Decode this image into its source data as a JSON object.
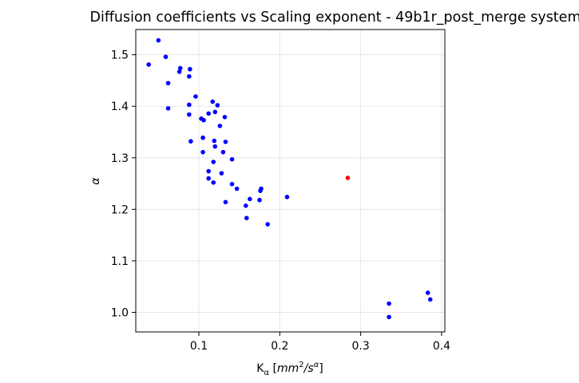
{
  "chart_data": {
    "type": "scatter",
    "title": "Diffusion coefficients vs Scaling exponent - 49b1r_post_merge system",
    "xlabel": "K_α [mm²/s^α]",
    "ylabel": "α",
    "xlim": [
      0.022,
      0.404
    ],
    "ylim": [
      0.962,
      1.549
    ],
    "xticks": [
      0.1,
      0.2,
      0.3,
      0.4
    ],
    "xtick_labels": [
      "0.1",
      "0.2",
      "0.3",
      "0.4"
    ],
    "yticks": [
      1.0,
      1.1,
      1.2,
      1.3,
      1.4,
      1.5
    ],
    "ytick_labels": [
      "1.0",
      "1.1",
      "1.2",
      "1.3",
      "1.4",
      "1.5"
    ],
    "grid": true,
    "series": [
      {
        "color": "#0000ff",
        "points": [
          [
            0.05,
            1.528
          ],
          [
            0.038,
            1.481
          ],
          [
            0.059,
            1.496
          ],
          [
            0.062,
            1.445
          ],
          [
            0.077,
            1.474
          ],
          [
            0.076,
            1.467
          ],
          [
            0.089,
            1.472
          ],
          [
            0.088,
            1.458
          ],
          [
            0.096,
            1.419
          ],
          [
            0.062,
            1.396
          ],
          [
            0.088,
            1.403
          ],
          [
            0.117,
            1.409
          ],
          [
            0.123,
            1.402
          ],
          [
            0.12,
            1.389
          ],
          [
            0.112,
            1.386
          ],
          [
            0.088,
            1.384
          ],
          [
            0.132,
            1.379
          ],
          [
            0.103,
            1.376
          ],
          [
            0.106,
            1.373
          ],
          [
            0.126,
            1.362
          ],
          [
            0.105,
            1.339
          ],
          [
            0.09,
            1.332
          ],
          [
            0.119,
            1.333
          ],
          [
            0.133,
            1.331
          ],
          [
            0.12,
            1.322
          ],
          [
            0.13,
            1.311
          ],
          [
            0.105,
            1.311
          ],
          [
            0.141,
            1.297
          ],
          [
            0.118,
            1.292
          ],
          [
            0.112,
            1.274
          ],
          [
            0.128,
            1.27
          ],
          [
            0.112,
            1.26
          ],
          [
            0.118,
            1.252
          ],
          [
            0.141,
            1.249
          ],
          [
            0.147,
            1.24
          ],
          [
            0.177,
            1.24
          ],
          [
            0.176,
            1.236
          ],
          [
            0.209,
            1.224
          ],
          [
            0.163,
            1.22
          ],
          [
            0.175,
            1.218
          ],
          [
            0.133,
            1.214
          ],
          [
            0.158,
            1.207
          ],
          [
            0.159,
            1.183
          ],
          [
            0.185,
            1.171
          ],
          [
            0.335,
            1.017
          ],
          [
            0.335,
            0.991
          ],
          [
            0.383,
            1.038
          ],
          [
            0.386,
            1.025
          ]
        ]
      },
      {
        "color": "#ff0000",
        "points": [
          [
            0.284,
            1.261
          ]
        ]
      }
    ]
  }
}
